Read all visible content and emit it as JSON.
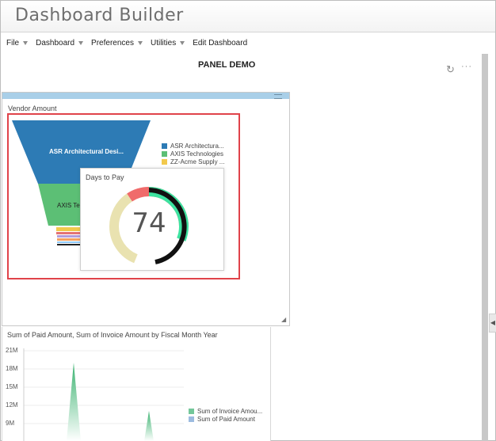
{
  "app": {
    "title": "Dashboard Builder"
  },
  "menu": [
    {
      "label": "File",
      "caret": true
    },
    {
      "label": "Dashboard",
      "caret": true
    },
    {
      "label": "Preferences",
      "caret": true
    },
    {
      "label": "Utilities",
      "caret": true
    },
    {
      "label": "Edit Dashboard",
      "caret": false
    }
  ],
  "panel": {
    "title": "PANEL DEMO",
    "refresh_icon": "refresh-icon",
    "more_icon": "more-icon"
  },
  "vendor_chart": {
    "title": "Vendor Amount",
    "funnel_labels": [
      "ASR Architectural Desi...",
      "AXIS Tec"
    ],
    "legend": [
      {
        "label": "ASR Architectura...",
        "color": "#2d7bb5"
      },
      {
        "label": "AXIS Technologies",
        "color": "#5cbf75"
      },
      {
        "label": "ZZ-Acme Supply ...",
        "color": "#f2c94c"
      }
    ]
  },
  "days_to_pay": {
    "title": "Days to Pay",
    "value": "74"
  },
  "sum_chart": {
    "title": "Sum of Paid Amount, Sum of Invoice Amount by Fiscal Month Year",
    "y_ticks": [
      "21M",
      "18M",
      "15M",
      "12M",
      "9M"
    ],
    "legend": [
      {
        "label": "Sum of Invoice Amou...",
        "color": "#74c79a"
      },
      {
        "label": "Sum of Paid Amount",
        "color": "#9cbbe0"
      }
    ]
  }
}
